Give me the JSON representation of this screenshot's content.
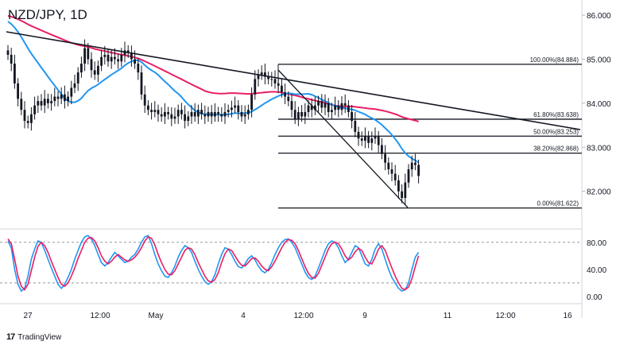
{
  "header": {
    "title": "NZD/JPY, 1D"
  },
  "footer": {
    "brand": "TradingView"
  },
  "colors": {
    "trendline": "#131722",
    "ma_slow": "#e91e63",
    "ma_fast": "#2196f3",
    "candle": "#131722",
    "stoch_k": "#2196f3",
    "stoch_d": "#e91e63",
    "fib_line": "#131722",
    "grid": "#e0e3eb"
  },
  "chart_data": [
    {
      "type": "candlestick",
      "title": "NZD/JPY, 1D",
      "ylim": [
        81.2,
        86.2
      ],
      "y_ticks": [
        "86.000",
        "85.000",
        "84.000",
        "83.000",
        "82.000"
      ],
      "x_ticks": [
        "27",
        "12:00",
        "May",
        "4",
        "12:00",
        "9",
        "11",
        "12:00",
        "16"
      ],
      "fibonacci": [
        {
          "label": "100.00%(84.884)",
          "value": 84.884
        },
        {
          "label": "61.80%(83.638)",
          "value": 83.638
        },
        {
          "label": "50.00%(83.253)",
          "value": 83.253
        },
        {
          "label": "38.20%(82.868)",
          "value": 82.868
        },
        {
          "label": "0.00%(81.622)",
          "value": 81.622
        }
      ],
      "close": [
        85.1,
        84.9,
        84.45,
        84.1,
        83.85,
        83.6,
        83.55,
        83.75,
        83.95,
        84.05,
        83.95,
        84.1,
        84.0,
        84.05,
        84.15,
        84.1,
        84.2,
        84.05,
        84.15,
        84.35,
        84.45,
        84.7,
        84.9,
        85.25,
        85.0,
        84.75,
        84.65,
        84.85,
        85.05,
        85.1,
        84.95,
        85.05,
        85.0,
        84.95,
        85.1,
        85.2,
        85.15,
        85.0,
        84.9,
        84.7,
        84.2,
        83.95,
        83.85,
        83.8,
        83.85,
        83.75,
        83.7,
        83.8,
        83.75,
        83.65,
        83.7,
        83.85,
        83.75,
        83.6,
        83.7,
        83.8,
        83.7,
        83.85,
        83.75,
        83.7,
        83.8,
        83.7,
        83.8,
        83.75,
        83.7,
        83.8,
        83.85,
        83.9,
        83.95,
        83.8,
        83.7,
        83.75,
        83.85,
        84.2,
        84.55,
        84.65,
        84.7,
        84.6,
        84.55,
        84.55,
        84.45,
        84.4,
        84.25,
        84.15,
        84.05,
        83.85,
        83.65,
        83.8,
        83.7,
        83.8,
        83.95,
        83.85,
        83.95,
        84.05,
        83.9,
        84.0,
        83.8,
        83.85,
        83.95,
        83.85,
        84.0,
        83.95,
        83.8,
        83.6,
        83.35,
        83.2,
        83.15,
        83.25,
        83.1,
        83.2,
        83.25,
        83.05,
        82.85,
        82.65,
        82.5,
        82.4,
        82.25,
        82.0,
        81.85,
        82.2,
        82.5,
        82.65,
        82.6,
        82.35
      ]
    },
    {
      "type": "line",
      "title": "",
      "ylim": [
        -6,
        95
      ],
      "y_ticks": [
        "80.00",
        "40.00",
        "0.00"
      ],
      "levels": [
        80,
        20
      ],
      "series": [
        {
          "name": "",
          "values": [
            82,
            72,
            40,
            18,
            8,
            12,
            30,
            55,
            70,
            82,
            80,
            68,
            55,
            42,
            30,
            18,
            12,
            18,
            28,
            40,
            55,
            68,
            80,
            88,
            90,
            85,
            75,
            62,
            50,
            45,
            50,
            58,
            65,
            60,
            55,
            50,
            52,
            58,
            62,
            70,
            80,
            88,
            90,
            78,
            62,
            48,
            38,
            30,
            28,
            35,
            45,
            58,
            68,
            75,
            72,
            65,
            52,
            40,
            30,
            22,
            18,
            22,
            32,
            48,
            62,
            72,
            70,
            62,
            52,
            44,
            42,
            48,
            56,
            60,
            54,
            45,
            38,
            35,
            40,
            50,
            62,
            72,
            80,
            84,
            85,
            80,
            72,
            60,
            48,
            36,
            28,
            25,
            30,
            42,
            55,
            68,
            78,
            82,
            80,
            72,
            60,
            50,
            55,
            65,
            75,
            72,
            60,
            48,
            45,
            55,
            70,
            78,
            70,
            55,
            40,
            28,
            20,
            12,
            8,
            10,
            20,
            40,
            58,
            65
          ]
        },
        {
          "name": "",
          "values": [
            85,
            78,
            55,
            30,
            15,
            10,
            18,
            38,
            58,
            74,
            80,
            75,
            65,
            52,
            40,
            28,
            18,
            15,
            20,
            30,
            42,
            56,
            68,
            80,
            86,
            87,
            82,
            72,
            60,
            52,
            48,
            52,
            58,
            62,
            58,
            54,
            52,
            54,
            58,
            64,
            72,
            82,
            88,
            86,
            76,
            62,
            50,
            40,
            33,
            32,
            38,
            48,
            58,
            68,
            72,
            70,
            62,
            50,
            40,
            30,
            23,
            21,
            25,
            35,
            50,
            63,
            70,
            68,
            60,
            52,
            46,
            45,
            50,
            56,
            57,
            52,
            45,
            40,
            38,
            44,
            52,
            62,
            72,
            80,
            84,
            83,
            78,
            68,
            56,
            44,
            34,
            28,
            27,
            34,
            46,
            58,
            70,
            78,
            80,
            78,
            70,
            60,
            54,
            58,
            66,
            71,
            68,
            58,
            50,
            48,
            58,
            70,
            75,
            68,
            55,
            42,
            30,
            20,
            12,
            10,
            14,
            26,
            44,
            60
          ]
        }
      ]
    }
  ]
}
